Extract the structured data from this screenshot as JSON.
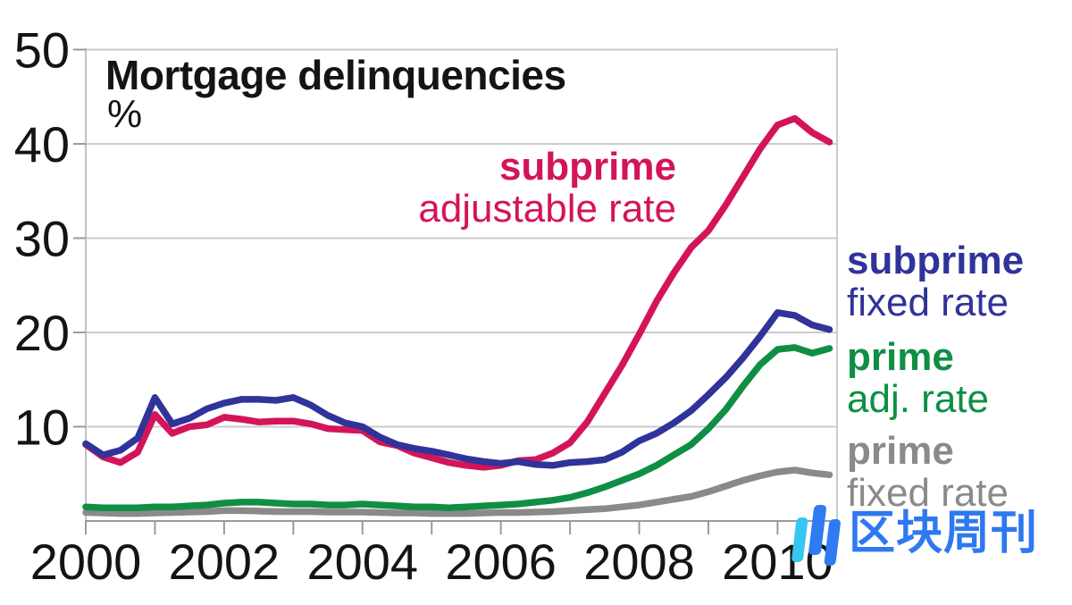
{
  "title": "Mortgage delinquencies",
  "unit_label": "%",
  "watermark": {
    "text": "区块周刊",
    "text_color": "#2E78F0",
    "logo_cyan": "#35C6F4",
    "logo_blue": "#2E7BF2"
  },
  "chart_data": {
    "type": "line",
    "title": "Mortgage delinquencies",
    "ylabel": "%",
    "xlabel": "",
    "xlim": [
      2000,
      2010.86
    ],
    "ylim": [
      0,
      50
    ],
    "grid": "horizontal",
    "legend_position": "inline-annotations",
    "x_start": 2000.0,
    "x_step": 0.25,
    "x_minor_ticks": [
      2000,
      2001,
      2002,
      2003,
      2004,
      2005,
      2006,
      2007,
      2008,
      2009,
      2010
    ],
    "x_tick_labels": [
      "2000",
      "2002",
      "2004",
      "2006",
      "2008",
      "2010"
    ],
    "x_tick_label_years": [
      2000,
      2002,
      2004,
      2006,
      2008,
      2010
    ],
    "y_ticks": [
      10,
      20,
      30,
      40,
      50
    ],
    "style": {
      "grid_color": "#cbcbcb",
      "axis_color": "#9a9a9a",
      "border_color": "#c2c2c2",
      "tick_text_color": "#141414",
      "line_width": 7.5
    },
    "draw_order": [
      3,
      2,
      0,
      1
    ],
    "series": [
      {
        "id": "subprime-adjustable-rate",
        "name": "subprime adjustable rate",
        "label_bold": "subprime",
        "label_rest": "adjustable rate",
        "color": "#D4145A",
        "values": [
          8.1,
          6.8,
          6.2,
          7.3,
          11.3,
          9.3,
          10.0,
          10.2,
          11.0,
          10.8,
          10.5,
          10.6,
          10.6,
          10.3,
          9.8,
          9.7,
          9.6,
          8.4,
          8.0,
          7.2,
          6.7,
          6.2,
          5.9,
          5.7,
          5.9,
          6.4,
          6.5,
          7.2,
          8.3,
          10.5,
          13.5,
          16.5,
          19.8,
          23.3,
          26.3,
          29.0,
          30.8,
          33.5,
          36.5,
          39.5,
          42.0,
          42.7,
          41.2,
          40.2
        ]
      },
      {
        "id": "subprime-fixed-rate",
        "name": "subprime fixed rate",
        "label_bold": "subprime",
        "label_rest": "fixed rate",
        "color": "#303399",
        "values": [
          8.2,
          7.0,
          7.5,
          8.8,
          13.1,
          10.3,
          10.9,
          11.9,
          12.5,
          12.9,
          12.9,
          12.8,
          13.1,
          12.3,
          11.2,
          10.4,
          10.0,
          8.9,
          8.1,
          7.7,
          7.4,
          7.0,
          6.6,
          6.3,
          6.1,
          6.3,
          6.0,
          5.9,
          6.2,
          6.3,
          6.5,
          7.3,
          8.5,
          9.3,
          10.4,
          11.7,
          13.4,
          15.2,
          17.3,
          19.6,
          22.1,
          21.8,
          20.8,
          20.3
        ]
      },
      {
        "id": "prime-adjustable-rate",
        "name": "prime adj. rate",
        "label_bold": "prime",
        "label_rest": "adj. rate",
        "color": "#0E8F44",
        "values": [
          1.5,
          1.4,
          1.4,
          1.4,
          1.5,
          1.5,
          1.6,
          1.7,
          1.9,
          2.0,
          2.0,
          1.9,
          1.8,
          1.8,
          1.7,
          1.7,
          1.8,
          1.7,
          1.6,
          1.5,
          1.5,
          1.4,
          1.5,
          1.6,
          1.7,
          1.8,
          2.0,
          2.2,
          2.5,
          3.0,
          3.6,
          4.3,
          5.0,
          5.9,
          7.0,
          8.1,
          9.8,
          11.8,
          14.3,
          16.6,
          18.2,
          18.4,
          17.8,
          18.3
        ]
      },
      {
        "id": "prime-fixed-rate",
        "name": "prime fixed rate",
        "label_bold": "prime",
        "label_rest": "fixed rate",
        "color": "#8A8A8A",
        "values": [
          0.9,
          0.85,
          0.8,
          0.8,
          0.85,
          0.9,
          0.95,
          1.0,
          1.1,
          1.1,
          1.05,
          1.0,
          1.0,
          1.0,
          0.95,
          0.95,
          0.95,
          0.9,
          0.85,
          0.85,
          0.8,
          0.8,
          0.8,
          0.85,
          0.9,
          0.9,
          0.95,
          1.0,
          1.1,
          1.2,
          1.3,
          1.5,
          1.7,
          2.0,
          2.3,
          2.6,
          3.1,
          3.7,
          4.3,
          4.8,
          5.2,
          5.4,
          5.1,
          4.9
        ]
      }
    ]
  }
}
